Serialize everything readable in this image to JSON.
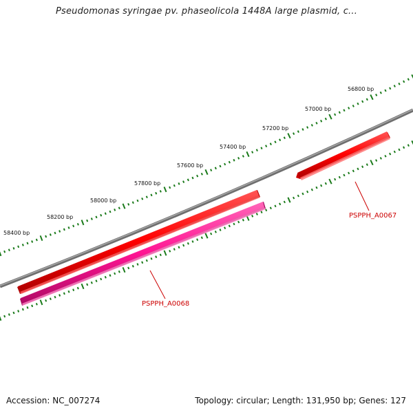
{
  "title": "Pseudomonas syringae pv. phaseolicola 1448A large plasmid, c...",
  "footer": {
    "accession": "Accession: NC_007274",
    "summary": "Topology: circular; Length: 131,950 bp; Genes: 127"
  },
  "ruler": {
    "labels": [
      "56800 bp",
      "57000 bp",
      "57200 bp",
      "57400 bp",
      "57600 bp",
      "57800 bp",
      "58000 bp",
      "58200 bp",
      "58400 bp"
    ]
  },
  "genes": [
    {
      "name": "PSPPH_A0067",
      "strand": "forward",
      "color": "#ff0000"
    },
    {
      "name": "PSPPH_A0068",
      "strand": "forward",
      "color": "#ff0000"
    },
    {
      "name": "",
      "strand": "reverse",
      "color": "#ff1493"
    }
  ],
  "colors": {
    "backbone": "#808080",
    "ruler": "#1a7a1a",
    "gene_label": "#cc0000"
  }
}
